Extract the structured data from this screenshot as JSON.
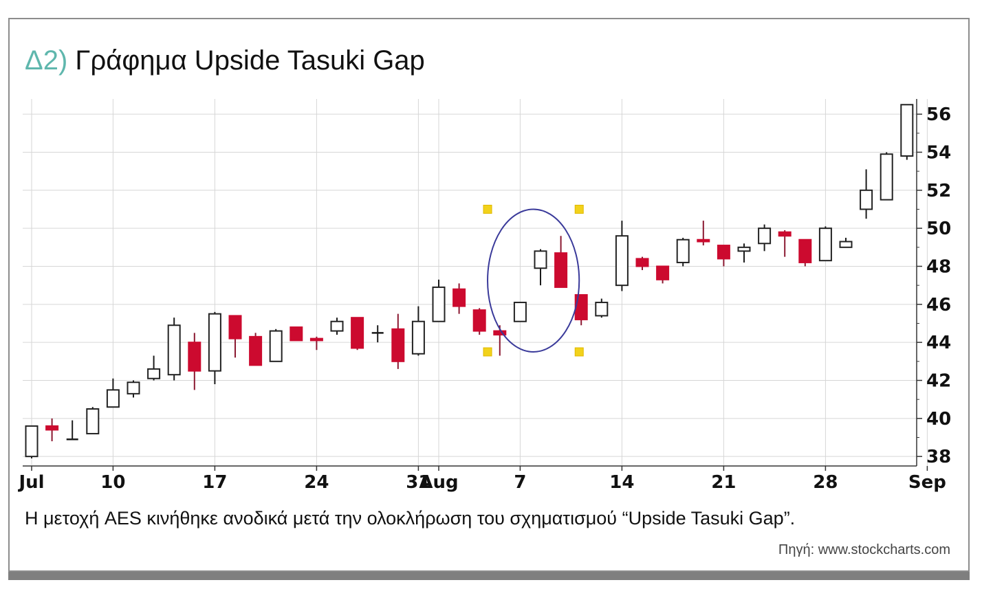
{
  "header": {
    "title_prefix": "Δ2)",
    "title_text": "Γράφημα Upside Tasuki Gap"
  },
  "caption": "Η μετοχή AES κινήθηκε ανοδικά μετά την ολοκλήρωση του σχηματισμού “Upside Tasuki Gap”.",
  "source": "Πηγή: www.stockcharts.com",
  "colors": {
    "bullish_fill": "#ffffff",
    "bearish_fill": "#cc0a2f",
    "candle_outline": "#222222",
    "bearish_wick": "#8a1830",
    "grid": "#d6d6d6",
    "ellipse": "#3a3a9a",
    "handle": "#f2d21b",
    "title_accent": "#5fb7ad"
  },
  "chart_data": {
    "type": "candlestick",
    "ylim": [
      37.5,
      56.8
    ],
    "yticks": [
      38,
      40,
      42,
      44,
      46,
      48,
      50,
      52,
      54,
      56
    ],
    "xlim": [
      0,
      45
    ],
    "xticks": [
      {
        "label": "Jul",
        "x": 0
      },
      {
        "label": "10",
        "x": 4
      },
      {
        "label": "17",
        "x": 9
      },
      {
        "label": "24",
        "x": 14
      },
      {
        "label": "31",
        "x": 19
      },
      {
        "label": "Aug",
        "x": 20
      },
      {
        "label": "7",
        "x": 24
      },
      {
        "label": "14",
        "x": 29
      },
      {
        "label": "21",
        "x": 34
      },
      {
        "label": "28",
        "x": 39
      },
      {
        "label": "Sep",
        "x": 44
      }
    ],
    "candles": [
      {
        "x": 0,
        "open": 38.0,
        "high": 39.6,
        "low": 37.9,
        "close": 39.6
      },
      {
        "x": 1,
        "open": 39.6,
        "high": 40.0,
        "low": 38.8,
        "close": 39.4
      },
      {
        "x": 2,
        "open": 38.9,
        "high": 39.9,
        "low": 38.9,
        "close": 38.9
      },
      {
        "x": 3,
        "open": 39.2,
        "high": 40.6,
        "low": 39.2,
        "close": 40.5
      },
      {
        "x": 4,
        "open": 40.6,
        "high": 42.1,
        "low": 40.6,
        "close": 41.5
      },
      {
        "x": 5,
        "open": 41.3,
        "high": 42.0,
        "low": 41.1,
        "close": 41.9
      },
      {
        "x": 6,
        "open": 42.1,
        "high": 43.3,
        "low": 42.0,
        "close": 42.6
      },
      {
        "x": 7,
        "open": 42.3,
        "high": 45.3,
        "low": 42.0,
        "close": 44.9
      },
      {
        "x": 8,
        "open": 44.0,
        "high": 44.5,
        "low": 41.5,
        "close": 42.5
      },
      {
        "x": 9,
        "open": 42.5,
        "high": 45.6,
        "low": 41.8,
        "close": 45.5
      },
      {
        "x": 10,
        "open": 45.4,
        "high": 45.4,
        "low": 43.2,
        "close": 44.2
      },
      {
        "x": 11,
        "open": 44.3,
        "high": 44.5,
        "low": 42.8,
        "close": 42.8
      },
      {
        "x": 12,
        "open": 43.0,
        "high": 44.7,
        "low": 43.0,
        "close": 44.6
      },
      {
        "x": 13,
        "open": 44.8,
        "high": 44.8,
        "low": 44.1,
        "close": 44.1
      },
      {
        "x": 14,
        "open": 44.2,
        "high": 44.3,
        "low": 43.6,
        "close": 44.1
      },
      {
        "x": 15,
        "open": 44.6,
        "high": 45.3,
        "low": 44.4,
        "close": 45.1
      },
      {
        "x": 16,
        "open": 45.3,
        "high": 45.3,
        "low": 43.6,
        "close": 43.7
      },
      {
        "x": 17,
        "open": 44.5,
        "high": 44.9,
        "low": 44.0,
        "close": 44.5
      },
      {
        "x": 18,
        "open": 44.7,
        "high": 45.5,
        "low": 42.6,
        "close": 43.0
      },
      {
        "x": 19,
        "open": 43.4,
        "high": 45.9,
        "low": 43.3,
        "close": 45.1
      },
      {
        "x": 20,
        "open": 45.1,
        "high": 47.3,
        "low": 45.1,
        "close": 46.9
      },
      {
        "x": 21,
        "open": 46.8,
        "high": 47.1,
        "low": 45.5,
        "close": 45.9
      },
      {
        "x": 22,
        "open": 45.7,
        "high": 45.8,
        "low": 44.4,
        "close": 44.6
      },
      {
        "x": 23,
        "open": 44.6,
        "high": 44.9,
        "low": 43.3,
        "close": 44.4
      },
      {
        "x": 24,
        "open": 45.1,
        "high": 46.1,
        "low": 45.1,
        "close": 46.1
      },
      {
        "x": 25,
        "open": 47.9,
        "high": 48.9,
        "low": 47.0,
        "close": 48.8
      },
      {
        "x": 26,
        "open": 48.7,
        "high": 49.6,
        "low": 46.9,
        "close": 46.9
      },
      {
        "x": 27,
        "open": 46.5,
        "high": 46.5,
        "low": 44.9,
        "close": 45.2
      },
      {
        "x": 28,
        "open": 45.4,
        "high": 46.3,
        "low": 45.3,
        "close": 46.1
      },
      {
        "x": 29,
        "open": 47.0,
        "high": 50.4,
        "low": 46.7,
        "close": 49.6
      },
      {
        "x": 30,
        "open": 48.4,
        "high": 48.5,
        "low": 47.8,
        "close": 48.0
      },
      {
        "x": 31,
        "open": 48.0,
        "high": 48.0,
        "low": 47.1,
        "close": 47.3
      },
      {
        "x": 32,
        "open": 48.2,
        "high": 49.5,
        "low": 48.0,
        "close": 49.4
      },
      {
        "x": 33,
        "open": 49.4,
        "high": 50.4,
        "low": 49.1,
        "close": 49.3
      },
      {
        "x": 34,
        "open": 49.1,
        "high": 49.1,
        "low": 48.0,
        "close": 48.4
      },
      {
        "x": 35,
        "open": 48.8,
        "high": 49.2,
        "low": 48.2,
        "close": 49.0
      },
      {
        "x": 36,
        "open": 49.2,
        "high": 50.2,
        "low": 48.8,
        "close": 50.0
      },
      {
        "x": 37,
        "open": 49.8,
        "high": 49.9,
        "low": 48.5,
        "close": 49.6
      },
      {
        "x": 38,
        "open": 49.4,
        "high": 49.4,
        "low": 48.0,
        "close": 48.2
      },
      {
        "x": 39,
        "open": 48.3,
        "high": 50.1,
        "low": 48.3,
        "close": 50.0
      },
      {
        "x": 40,
        "open": 49.0,
        "high": 49.5,
        "low": 49.0,
        "close": 49.3
      },
      {
        "x": 41,
        "open": 51.0,
        "high": 53.1,
        "low": 50.5,
        "close": 52.0
      },
      {
        "x": 42,
        "open": 51.5,
        "high": 54.0,
        "low": 51.5,
        "close": 53.9
      },
      {
        "x": 43,
        "open": 53.8,
        "high": 56.5,
        "low": 53.6,
        "close": 56.5
      }
    ],
    "highlight": {
      "shape": "ellipse",
      "x_from": 22.4,
      "x_to": 26.9,
      "y_from": 43.5,
      "y_to": 51.0
    }
  }
}
